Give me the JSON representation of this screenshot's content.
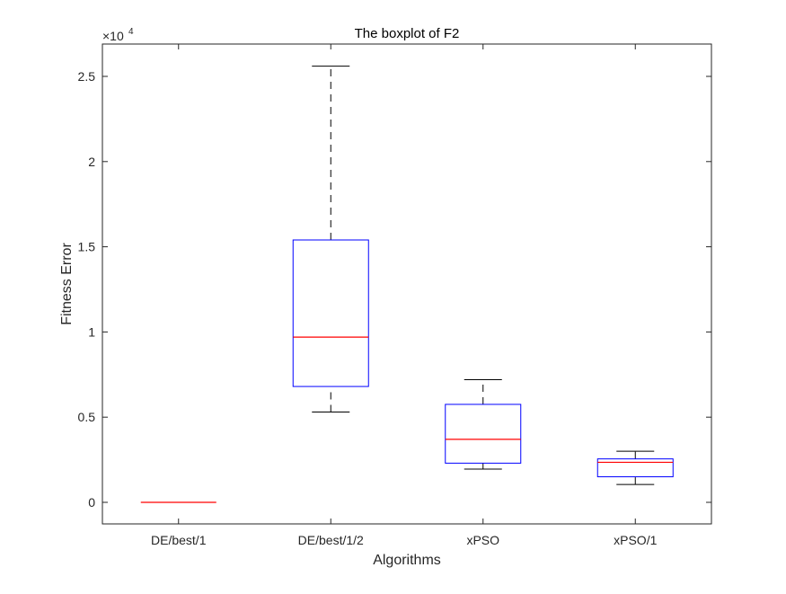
{
  "chart_data": {
    "type": "boxplot",
    "title": "The boxplot of F2",
    "xlabel": "Algorithms",
    "ylabel": "Fitness Error",
    "y_exponent_label": "×10",
    "y_exponent_power": "4",
    "y_scale_factor": 10000,
    "ylim": [
      -1300,
      27000
    ],
    "y_ticks": [
      0,
      5000,
      10000,
      15000,
      20000,
      25000
    ],
    "y_tick_labels": [
      "0",
      "0.5",
      "1",
      "1.5",
      "2",
      "2.5"
    ],
    "categories": [
      "DE/best/1",
      "DE/best/1/2",
      "xPSO",
      "xPSO/1"
    ],
    "boxes": [
      {
        "category": "DE/best/1",
        "whisker_low": 0,
        "q1": 0,
        "median": 0,
        "q3": 0,
        "whisker_high": 0
      },
      {
        "category": "DE/best/1/2",
        "whisker_low": 5300,
        "q1": 6800,
        "median": 9700,
        "q3": 15400,
        "whisker_high": 25600
      },
      {
        "category": "xPSO",
        "whisker_low": 1950,
        "q1": 2300,
        "median": 3700,
        "q3": 5750,
        "whisker_high": 7200
      },
      {
        "category": "xPSO/1",
        "whisker_low": 1050,
        "q1": 1500,
        "median": 2350,
        "q3": 2550,
        "whisker_high": 3000
      }
    ],
    "colors": {
      "box": "#0000ff",
      "median": "#ff0000",
      "whisker": "#000000",
      "axes": "#262626"
    },
    "grid": false,
    "legend": "none"
  }
}
